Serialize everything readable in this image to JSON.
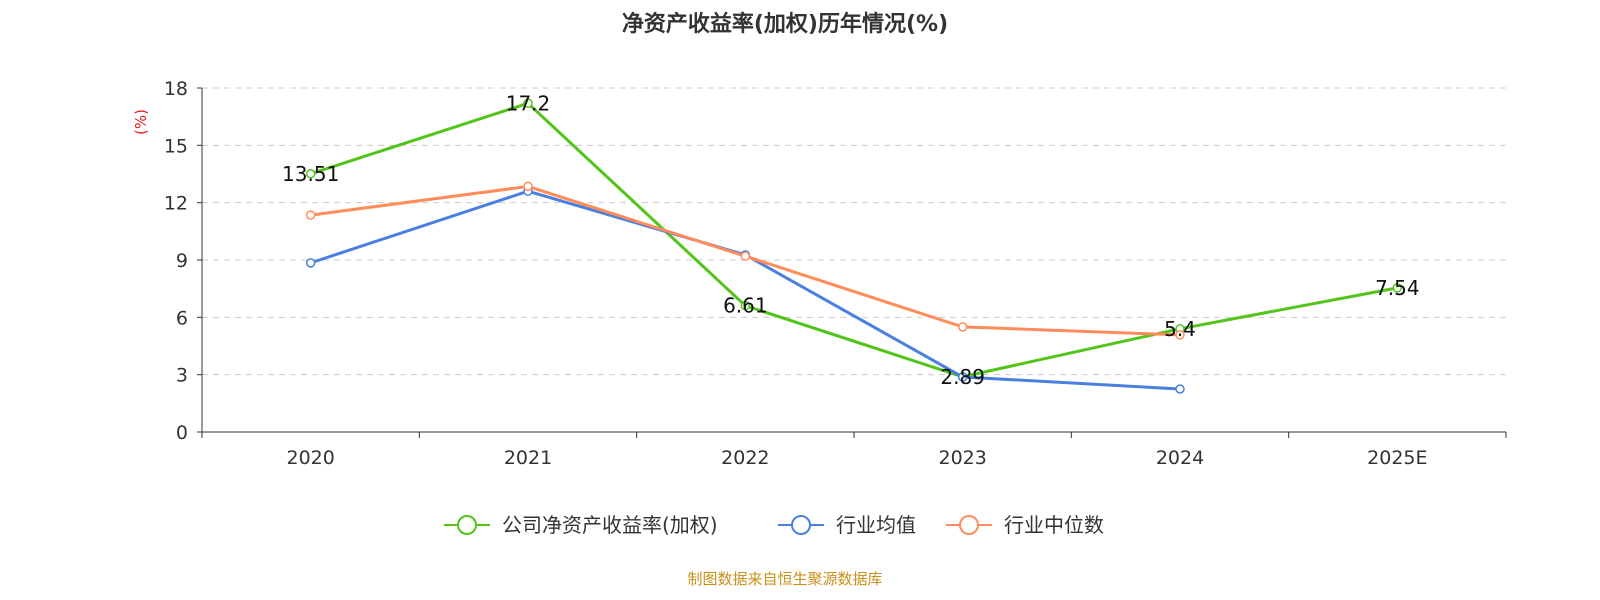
{
  "title": "净资产收益率(加权)历年情况(%)",
  "source": "制图数据来自恒生聚源数据库",
  "chart_data": {
    "type": "line",
    "title": "净资产收益率(加权)历年情况(%)",
    "ylabel": "(%)",
    "ylabel_color": "#e02020",
    "categories": [
      "2020",
      "2021",
      "2022",
      "2023",
      "2024",
      "2025E"
    ],
    "ylim": [
      0,
      18
    ],
    "yticks": [
      0,
      3,
      6,
      9,
      12,
      15,
      18
    ],
    "grid": true,
    "legend_position": "bottom",
    "series": [
      {
        "name": "公司净资产收益率(加权)",
        "color": "#52c41a",
        "values": [
          13.51,
          17.2,
          6.61,
          2.89,
          5.4,
          7.54
        ],
        "labels": [
          "13.51",
          "17.2",
          "6.61",
          "2.89",
          "5.4",
          "7.54"
        ]
      },
      {
        "name": "行业均值",
        "color": "#4a7fe0",
        "values": [
          8.85,
          12.6,
          9.27,
          2.88,
          2.25,
          null
        ]
      },
      {
        "name": "行业中位数",
        "color": "#ff8c5a",
        "values": [
          11.35,
          12.85,
          9.2,
          5.5,
          5.08,
          null
        ]
      }
    ]
  }
}
